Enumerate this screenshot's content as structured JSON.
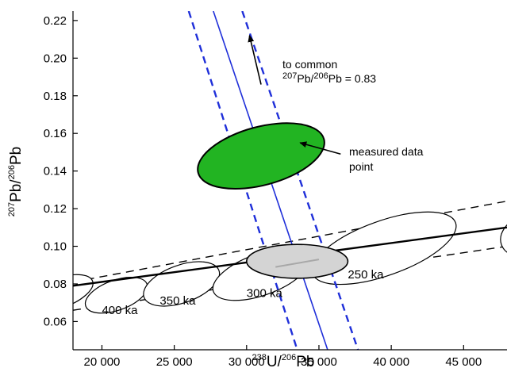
{
  "chart_data": {
    "type": "scatter",
    "title": "",
    "xlabel": {
      "sup1": "238",
      "base1": "U/",
      "sup2": "206",
      "base2": "Pb"
    },
    "ylabel": {
      "sup1": "207",
      "base1": "Pb/",
      "sup2": "206",
      "base2": "Pb"
    },
    "xlim": [
      18000,
      48000
    ],
    "ylim": [
      0.045,
      0.225
    ],
    "x_ticks": [
      20000,
      25000,
      30000,
      35000,
      40000,
      45000
    ],
    "x_tick_labels": [
      "20 000",
      "25 000",
      "30 000",
      "35 000",
      "40 000",
      "45 000"
    ],
    "y_ticks": [
      0.06,
      0.08,
      0.1,
      0.12,
      0.14,
      0.16,
      0.18,
      0.2,
      0.22
    ],
    "y_tick_labels": [
      "0.06",
      "0.08",
      "0.10",
      "0.12",
      "0.14",
      "0.16",
      "0.18",
      "0.20",
      "0.22"
    ],
    "grid": false,
    "concordia": {
      "line": [
        [
          18000,
          0.079
        ],
        [
          48000,
          0.11
        ]
      ],
      "upper_envelope": [
        [
          18000,
          0.081
        ],
        [
          48000,
          0.124
        ]
      ],
      "lower_envelope": [
        [
          18000,
          0.066
        ],
        [
          48000,
          0.1
        ]
      ],
      "ellipses": [
        {
          "x": 17000,
          "y": 0.075,
          "w": 5000,
          "h": 0.016,
          "label": ""
        },
        {
          "x": 21000,
          "y": 0.074,
          "w": 4500,
          "h": 0.016,
          "label": "400 ka"
        },
        {
          "x": 25500,
          "y": 0.08,
          "w": 5500,
          "h": 0.02,
          "label": "350 ka"
        },
        {
          "x": 31000,
          "y": 0.085,
          "w": 7000,
          "h": 0.022,
          "label": "300 ka"
        },
        {
          "x": 39500,
          "y": 0.099,
          "w": 10500,
          "h": 0.029,
          "label": "250 ka"
        },
        {
          "x": 49500,
          "y": 0.106,
          "w": 4000,
          "h": 0.022,
          "label": ""
        }
      ],
      "label_positions": {
        "400 ka": [
          20000,
          0.064
        ],
        "350 ka": [
          24000,
          0.069
        ],
        "300 ka": [
          30000,
          0.073
        ],
        "250 ka": [
          37000,
          0.083
        ]
      }
    },
    "measured_ellipse": {
      "x": 31000,
      "y": 0.148,
      "w": 9000,
      "h": 0.031
    },
    "intersection_ellipse": {
      "x": 33500,
      "y": 0.092,
      "w": 7000,
      "h": 0.018,
      "inner_line": [
        [
          32000,
          0.089
        ],
        [
          35000,
          0.093
        ]
      ]
    },
    "mixing_line": [
      [
        27700,
        0.225
      ],
      [
        35600,
        0.045
      ]
    ],
    "mixing_band_left": [
      [
        26000,
        0.225
      ],
      [
        33500,
        0.045
      ]
    ],
    "mixing_band_right": [
      [
        29700,
        0.225
      ],
      [
        37700,
        0.045
      ]
    ],
    "common_pb_arrow": {
      "from": [
        31000,
        0.186
      ],
      "to": [
        30200,
        0.212
      ],
      "label_line1": "to common",
      "label_line2": {
        "sup1": "207",
        "base1": "Pb/",
        "sup2": "206",
        "base2": "Pb = 0.83"
      }
    },
    "measured_arrow": {
      "from": [
        36500,
        0.149
      ],
      "to": [
        33700,
        0.155
      ],
      "label_line1": "measured data",
      "label_line2": "point"
    },
    "colors": {
      "measured_fill": "#22b422",
      "intersection_fill": "#d4d4d4",
      "mixing_line": "#1f2fd9",
      "axis": "#000000"
    }
  }
}
